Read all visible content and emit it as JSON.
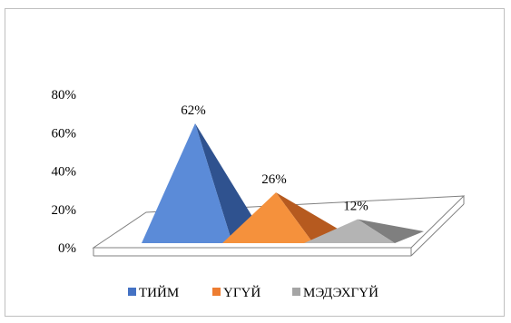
{
  "chart_data": {
    "type": "bar",
    "style": "3d-pyramid",
    "categories": [
      "ТИЙМ",
      "ҮГҮЙ",
      "МЭДЭХГҮЙ"
    ],
    "values": [
      62,
      26,
      12
    ],
    "data_labels": [
      "62%",
      "26%",
      "12%"
    ],
    "ylim": [
      0,
      80
    ],
    "yticks": [
      "0%",
      "20%",
      "40%",
      "60%",
      "80%"
    ],
    "legend_position": "bottom",
    "grid": false
  },
  "colors": {
    "series": [
      "#4472c4",
      "#ed7d31",
      "#a5a5a5"
    ],
    "series_dark": [
      "#2f528f",
      "#b65a1f",
      "#7f7f7f"
    ],
    "series_light": [
      "#5b8bd8",
      "#f5913c",
      "#b4b4b4"
    ],
    "floor": "#808080"
  }
}
